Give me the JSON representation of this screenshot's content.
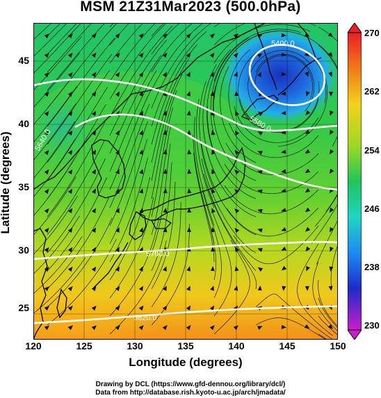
{
  "title": "MSM 21Z31Mar2023 (500.0hPa)",
  "axes": {
    "xlabel": "Longitude (degrees)",
    "ylabel": "Latitude  (degrees)",
    "xticks": [
      "120",
      "125",
      "130",
      "135",
      "140",
      "145",
      "150"
    ],
    "yticks": [
      "45",
      "40",
      "35",
      "30",
      "25"
    ]
  },
  "colorbar": {
    "labels": [
      "270",
      "262",
      "254",
      "246",
      "238",
      "230"
    ],
    "colors": [
      "#e8202a",
      "#f07a18",
      "#f2d21c",
      "#9fd824",
      "#21c45a",
      "#20d4c4",
      "#1d8cf0",
      "#1d2cc8",
      "#c81ec8"
    ]
  },
  "contours": {
    "c5400": "5400.0",
    "c5580": "5580.0",
    "c5640": "5640.0",
    "c5700": "5700.0",
    "c5820": "5820.0"
  },
  "credits": {
    "line1": "Drawing by DCL (https://www.gfd-dennou.org/library/dcl/)",
    "line2": "Data from http://database.rish.kyoto-u.ac.jp/arch/jmadata/"
  },
  "chart_data": {
    "type": "heatmap",
    "variable": "temperature at 500.0hPa (K), colored field with geopotential height contours and wind streamlines",
    "xlim": [
      120,
      150
    ],
    "ylim": [
      22.5,
      47.5
    ],
    "color_range": [
      230,
      270
    ],
    "color_ticks": [
      270,
      262,
      254,
      246,
      238,
      230
    ],
    "contour_levels": [
      5400.0,
      5580.0,
      5640.0,
      5700.0,
      5820.0
    ]
  }
}
